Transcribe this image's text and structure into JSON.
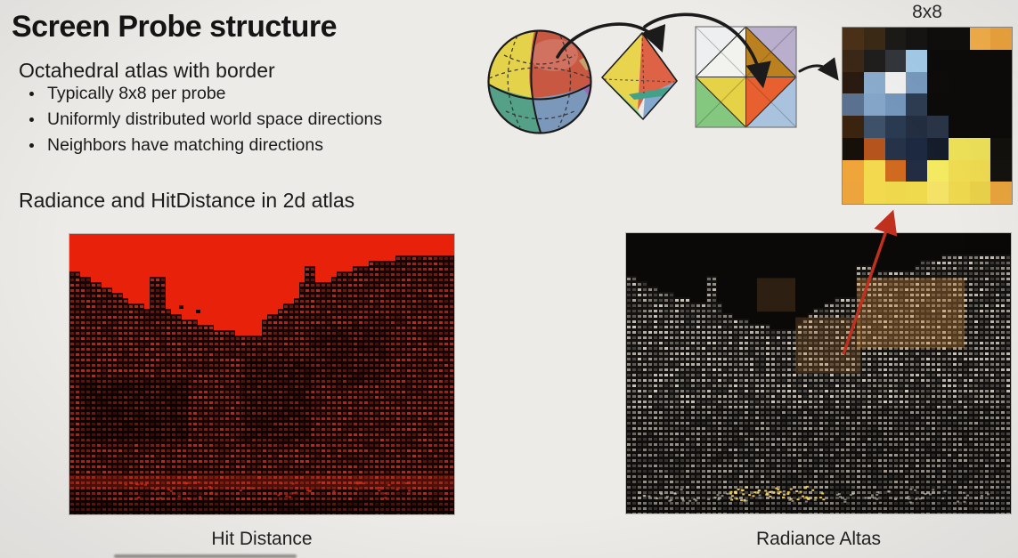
{
  "slide": {
    "title": "Screen Probe structure",
    "subtitle": "Octahedral atlas with border",
    "bullets": [
      "Typically 8x8 per probe",
      "Uniformly distributed world space directions",
      "Neighbors have matching directions"
    ],
    "section_line": "Radiance and HitDistance in 2d atlas",
    "grid_label": "8x8",
    "captions": {
      "left": "Hit Distance",
      "right": "Radiance Altas"
    }
  },
  "palette": {
    "background": "#edebe8",
    "text": "#1b1b1b",
    "arrow": "#1b1b1b",
    "red_arrow": "#c0301f",
    "sphere": {
      "yellow": "#e5d24b",
      "red": "#c95843",
      "green": "#55a187",
      "blue": "#7b98bb",
      "purple": "#9a6ab3",
      "tan": "#c7a06b"
    },
    "octahedron": {
      "yellow": "#e9d44e",
      "red": "#de6246",
      "green": "#90d189",
      "blue": "#85a8cf",
      "teal": "#43a089"
    },
    "atlas_square": {
      "corner_tl": "#edeff0",
      "corner_tr": "#b9aecb",
      "corner_bl": "#84c87f",
      "corner_br": "#a9c3de",
      "inner_tl": "#f2f2ee",
      "inner_tr": "#bb8120",
      "inner_bl": "#e5d247",
      "inner_br": "#e8602f"
    }
  },
  "probe_grid": {
    "rows": 8,
    "cols": 8,
    "cells": [
      [
        "#4a3117",
        "#3a2a16",
        "#1d1b17",
        "#161514",
        "#100f0e",
        "#100f0e",
        "#f2ae49",
        "#eda33e"
      ],
      [
        "#3c2817",
        "#211f1e",
        "#33363a",
        "#a3cbe8",
        "#0d0c0b",
        "#0d0c0b",
        "#0d0c0b",
        "#0d0c0b"
      ],
      [
        "#291a12",
        "#8aabcc",
        "#eeefee",
        "#7899bd",
        "#0e0d0c",
        "#0d0c0b",
        "#0d0c0b",
        "#0d0c0b"
      ],
      [
        "#5a7290",
        "#85a5c8",
        "#7396ba",
        "#2f3d52",
        "#0d0c0b",
        "#0d0c0b",
        "#0d0c0b",
        "#0d0c0b"
      ],
      [
        "#3a2410",
        "#3d5168",
        "#2a3a50",
        "#232f41",
        "#2a3547",
        "#0d0c0b",
        "#0d0c0b",
        "#0d0c0b"
      ],
      [
        "#16100b",
        "#b5541d",
        "#253248",
        "#1d2940",
        "#161e2c",
        "#ede158",
        "#ece05a",
        "#13110e"
      ],
      [
        "#f0a53b",
        "#f2d94d",
        "#d06a1e",
        "#222c42",
        "#f4ea62",
        "#f0dc52",
        "#efdb51",
        "#15130f"
      ],
      [
        "#eea43c",
        "#f2d94d",
        "#f0d84c",
        "#efda4e",
        "#f3e265",
        "#eed94e",
        "#ead14a",
        "#e8a33c"
      ]
    ]
  },
  "atlases": {
    "hit_distance": {
      "canvas": "hitCanvas",
      "seed": 7,
      "sky": "#e8220a",
      "base": "#1a0403",
      "dot": [
        200,
        38,
        18
      ],
      "alpha": [
        0.35,
        1.0
      ],
      "profile": [
        [
          0,
          0.125
        ],
        [
          0.02,
          0.135
        ],
        [
          0.05,
          0.155
        ],
        [
          0.08,
          0.175
        ],
        [
          0.11,
          0.2
        ],
        [
          0.14,
          0.225
        ],
        [
          0.17,
          0.245
        ],
        [
          0.2,
          0.26
        ],
        [
          0.212,
          0.26
        ],
        [
          0.215,
          0.155
        ],
        [
          0.248,
          0.155
        ],
        [
          0.252,
          0.27
        ],
        [
          0.29,
          0.295
        ],
        [
          0.33,
          0.315
        ],
        [
          0.37,
          0.33
        ],
        [
          0.41,
          0.345
        ],
        [
          0.44,
          0.36
        ],
        [
          0.5,
          0.365
        ],
        [
          0.505,
          0.305
        ],
        [
          0.53,
          0.285
        ],
        [
          0.56,
          0.255
        ],
        [
          0.59,
          0.225
        ],
        [
          0.602,
          0.225
        ],
        [
          0.606,
          0.115
        ],
        [
          0.643,
          0.115
        ],
        [
          0.647,
          0.19
        ],
        [
          0.68,
          0.16
        ],
        [
          0.71,
          0.135
        ],
        [
          0.74,
          0.12
        ],
        [
          0.77,
          0.105
        ],
        [
          0.81,
          0.095
        ],
        [
          0.85,
          0.085
        ],
        [
          0.89,
          0.08
        ],
        [
          1,
          0.075
        ]
      ],
      "specks": [
        [
          0.285,
          0.255
        ],
        [
          0.33,
          0.27
        ]
      ],
      "tints": [
        [
          0.03,
          0.52,
          0.28,
          0.22,
          "rgba(0,0,0,0.35)"
        ],
        [
          0.45,
          0.44,
          0.18,
          0.3,
          "rgba(0,0,0,0.28)"
        ],
        [
          0.63,
          0.32,
          0.2,
          0.22,
          "rgba(0,0,0,0.22)"
        ],
        [
          0,
          0.86,
          1,
          0.05,
          "rgba(230,48,22,0.25)"
        ],
        [
          0,
          0.95,
          1,
          0.05,
          "rgba(0,0,0,0.4)"
        ]
      ],
      "glints": [
        [
          0.05,
          0.88,
          0.85,
          0.06,
          50,
          "rgba(210,45,20,0.8)"
        ]
      ]
    },
    "radiance": {
      "canvas": "radCanvas",
      "seed": 13,
      "sky": "#0a0908",
      "base": "#131211",
      "dot": [
        214,
        208,
        198
      ],
      "alpha": [
        0.18,
        0.95
      ],
      "profile": [
        [
          0,
          0.15
        ],
        [
          0.03,
          0.165
        ],
        [
          0.06,
          0.185
        ],
        [
          0.09,
          0.2
        ],
        [
          0.12,
          0.215
        ],
        [
          0.15,
          0.23
        ],
        [
          0.18,
          0.245
        ],
        [
          0.21,
          0.255
        ],
        [
          0.213,
          0.16
        ],
        [
          0.24,
          0.16
        ],
        [
          0.244,
          0.27
        ],
        [
          0.28,
          0.295
        ],
        [
          0.32,
          0.315
        ],
        [
          0.36,
          0.33
        ],
        [
          0.4,
          0.345
        ],
        [
          0.435,
          0.35
        ],
        [
          0.46,
          0.3
        ],
        [
          0.49,
          0.275
        ],
        [
          0.52,
          0.255
        ],
        [
          0.55,
          0.235
        ],
        [
          0.58,
          0.22
        ],
        [
          0.596,
          0.22
        ],
        [
          0.601,
          0.12
        ],
        [
          0.633,
          0.12
        ],
        [
          0.637,
          0.145
        ],
        [
          0.68,
          0.135
        ],
        [
          0.72,
          0.125
        ],
        [
          0.755,
          0.125
        ],
        [
          0.76,
          0.095
        ],
        [
          0.82,
          0.085
        ],
        [
          0.88,
          0.078
        ],
        [
          1,
          0.07
        ]
      ],
      "specks": [],
      "tints": [
        [
          0.6,
          0.16,
          0.28,
          0.25,
          "rgba(205,135,55,0.35)"
        ],
        [
          0.44,
          0.3,
          0.17,
          0.2,
          "rgba(185,115,50,0.25)"
        ],
        [
          0.34,
          0.16,
          0.1,
          0.12,
          "rgba(175,115,60,0.22)"
        ],
        [
          0,
          0.62,
          1,
          0.33,
          "rgba(0,0,0,0.20)"
        ],
        [
          0,
          0.95,
          1,
          0.05,
          "rgba(0,0,0,0.30)"
        ]
      ],
      "glints": [
        [
          0.26,
          0.9,
          0.26,
          0.05,
          50,
          "rgba(255,214,92,0.9)"
        ],
        [
          0.04,
          0.91,
          0.9,
          0.05,
          70,
          "rgba(235,230,215,0.55)"
        ]
      ]
    }
  }
}
